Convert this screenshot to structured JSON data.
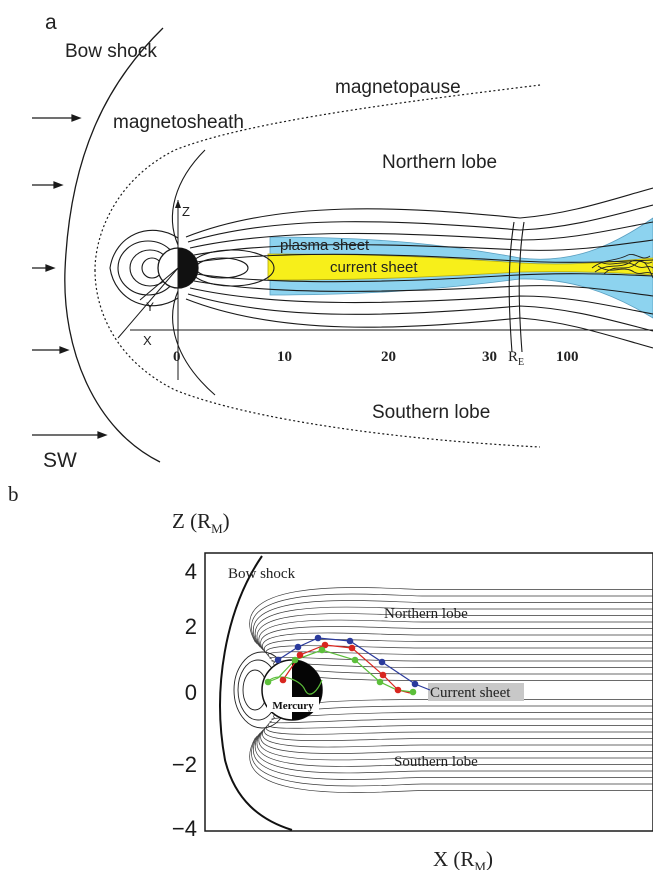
{
  "panel_a": {
    "panel_label": "a",
    "labels": {
      "bow_shock": "Bow shock",
      "magnetopause": "magnetopause",
      "magnetosheath": "magnetosheath",
      "northern_lobe": "Northern lobe",
      "southern_lobe": "Southern lobe",
      "plasma_sheet": "plasma sheet",
      "current_sheet": "current sheet",
      "solar_wind": "SW"
    },
    "axes": {
      "z": "Z",
      "y": "Y",
      "x": "X"
    },
    "ticks": [
      "0",
      "10",
      "20",
      "30",
      "100"
    ],
    "unit": {
      "base": "R",
      "sub": "E"
    },
    "colors": {
      "plasma_sheet": "#8dd3ef",
      "current_sheet": "#f7ef1a"
    }
  },
  "panel_b": {
    "panel_label": "b",
    "axis_z": {
      "base": "Z (R",
      "sub": "M",
      "close": ")"
    },
    "axis_x": {
      "base": "X (R",
      "sub": "M",
      "close": ")"
    },
    "y_ticks": [
      "4",
      "2",
      "0",
      "−2",
      "−4"
    ],
    "labels": {
      "bow_shock": "Bow shock",
      "northern_lobe": "Northern lobe",
      "southern_lobe": "Southern lobe",
      "current_sheet": "Current sheet",
      "planet": "Mercury"
    },
    "colors": {
      "track_blue": "#2a3a9c",
      "track_red": "#d8261f",
      "track_green": "#5cbf3a",
      "current_sheet_bg": "#c8c8c8"
    }
  }
}
